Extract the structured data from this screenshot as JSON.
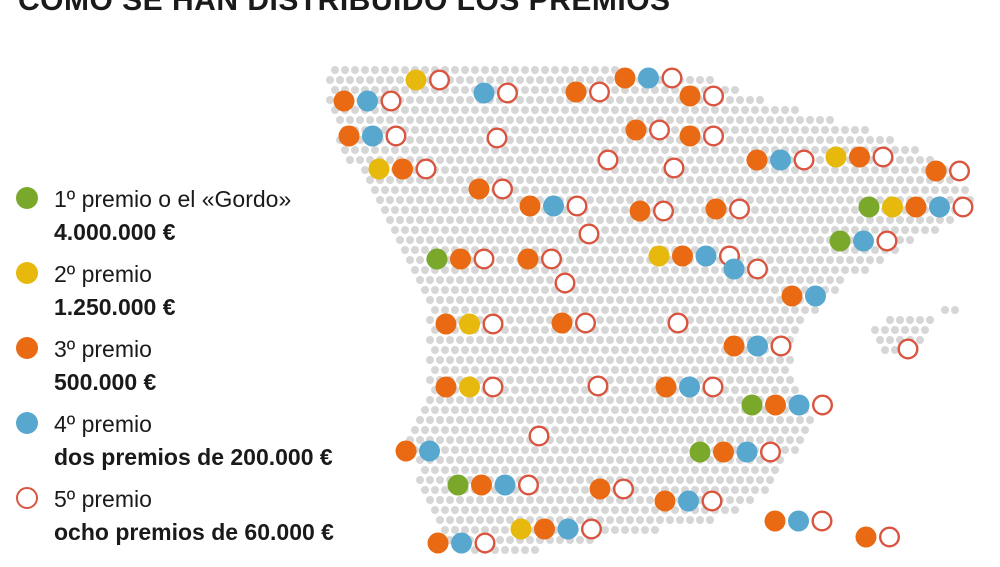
{
  "title": "CÓMO SE HAN DISTRIBUIDO LOS PREMIOS",
  "colors": {
    "primero": "#7aa82b",
    "segundo": "#e6b90c",
    "tercero": "#ea6a14",
    "cuarto": "#58a7cf",
    "quinto": "#d9553f",
    "map_dots": "#d6d6d6"
  },
  "legend": [
    {
      "key": "primero",
      "name": "1º premio o el «Gordo»",
      "amount": "4.000.000 €"
    },
    {
      "key": "segundo",
      "name": "2º premio",
      "amount": "1.250.000 €"
    },
    {
      "key": "tercero",
      "name": "3º premio",
      "amount": "500.000 €"
    },
    {
      "key": "cuarto",
      "name": "4º premio",
      "amount": "dos premios de 200.000 €"
    },
    {
      "key": "quinto",
      "name": "5º premio",
      "amount": "ocho premios de 60.000 €"
    }
  ],
  "map_icon": "spain-provinces-dot-map",
  "provinces": [
    [
      "tercero",
      "cuarto",
      "quinto"
    ],
    [
      "segundo",
      "quinto"
    ],
    [
      "cuarto",
      "quinto"
    ],
    [
      "tercero",
      "quinto"
    ],
    [
      "tercero",
      "cuarto",
      "quinto"
    ],
    [
      "tercero",
      "quinto"
    ],
    [
      "tercero",
      "cuarto",
      "quinto"
    ],
    [
      "quinto"
    ],
    [
      "tercero",
      "quinto"
    ],
    [
      "tercero",
      "quinto"
    ],
    [
      "segundo",
      "tercero",
      "quinto"
    ],
    [
      "quinto"
    ],
    [
      "quinto"
    ],
    [
      "tercero",
      "cuarto",
      "quinto"
    ],
    [
      "segundo",
      "tercero",
      "quinto"
    ],
    [
      "tercero",
      "quinto"
    ],
    [
      "tercero",
      "quinto"
    ],
    [
      "tercero",
      "cuarto",
      "quinto"
    ],
    [
      "tercero",
      "quinto"
    ],
    [
      "tercero",
      "quinto"
    ],
    [
      "primero",
      "segundo",
      "tercero",
      "cuarto",
      "quinto"
    ],
    [
      "quinto"
    ],
    [
      "primero",
      "cuarto",
      "quinto"
    ],
    [
      "primero",
      "tercero",
      "quinto"
    ],
    [
      "tercero",
      "quinto"
    ],
    [
      "quinto"
    ],
    [
      "segundo",
      "tercero",
      "cuarto",
      "quinto"
    ],
    [
      "cuarto",
      "quinto"
    ],
    [
      "tercero",
      "cuarto"
    ],
    [
      "tercero",
      "segundo",
      "quinto"
    ],
    [
      "tercero",
      "quinto"
    ],
    [
      "quinto"
    ],
    [
      "tercero",
      "cuarto",
      "quinto"
    ],
    [
      "quinto"
    ],
    [
      "tercero",
      "segundo",
      "quinto"
    ],
    [
      "quinto"
    ],
    [
      "tercero",
      "cuarto",
      "quinto"
    ],
    [
      "primero",
      "tercero",
      "cuarto",
      "quinto"
    ],
    [
      "quinto"
    ],
    [
      "tercero",
      "cuarto"
    ],
    [
      "primero",
      "tercero",
      "cuarto",
      "quinto"
    ],
    [
      "primero",
      "tercero",
      "cuarto",
      "quinto"
    ],
    [
      "tercero",
      "quinto"
    ],
    [
      "tercero",
      "cuarto",
      "quinto"
    ],
    [
      "tercero",
      "cuarto",
      "quinto"
    ],
    [
      "segundo",
      "tercero",
      "cuarto",
      "quinto"
    ],
    [
      "tercero",
      "cuarto",
      "quinto"
    ],
    [
      "tercero",
      "quinto"
    ]
  ]
}
